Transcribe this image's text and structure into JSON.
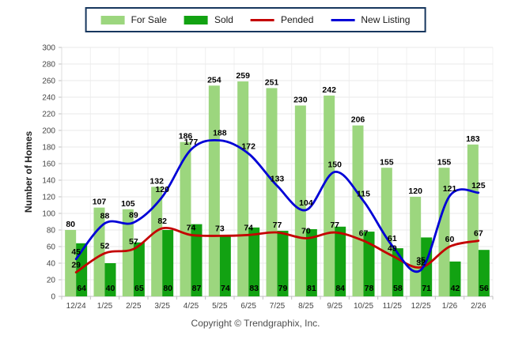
{
  "chart_data": {
    "type": "bar",
    "title": "",
    "categories": [
      "12/24",
      "1/25",
      "2/25",
      "3/25",
      "4/25",
      "5/25",
      "6/25",
      "7/25",
      "8/25",
      "9/25",
      "10/25",
      "11/25",
      "12/25",
      "1/26",
      "2/26"
    ],
    "series": [
      {
        "name": "For Sale",
        "kind": "bar",
        "color": "#9CD67E",
        "values": [
          80,
          107,
          105,
          132,
          186,
          254,
          259,
          251,
          230,
          242,
          206,
          155,
          120,
          155,
          183
        ]
      },
      {
        "name": "Sold",
        "kind": "bar",
        "color": "#12A212",
        "values": [
          64,
          40,
          65,
          80,
          87,
          74,
          83,
          79,
          81,
          84,
          78,
          58,
          71,
          42,
          56
        ]
      },
      {
        "name": "Pended",
        "kind": "line",
        "color": "#C40000",
        "values": [
          29,
          52,
          57,
          82,
          74,
          73,
          74,
          77,
          70,
          77,
          67,
          49,
          35,
          60,
          67
        ]
      },
      {
        "name": "New Listing",
        "kind": "line",
        "color": "#0000D6",
        "values": [
          45,
          88,
          89,
          120,
          177,
          188,
          172,
          133,
          104,
          150,
          115,
          61,
          32,
          121,
          125
        ]
      }
    ],
    "xlabel": "",
    "ylabel": "Number of Homes",
    "ylim": [
      0,
      300
    ],
    "ytick_step": 20,
    "grid": true,
    "legend_position": "top",
    "legend_border_color": "#17375E",
    "gridline_color": "#e9e9e9",
    "axis_color": "#bfbfbf",
    "label_color": "#000000",
    "tick_label_color": "#444444"
  },
  "footer": {
    "copyright": "Copyright © Trendgraphix, Inc."
  }
}
